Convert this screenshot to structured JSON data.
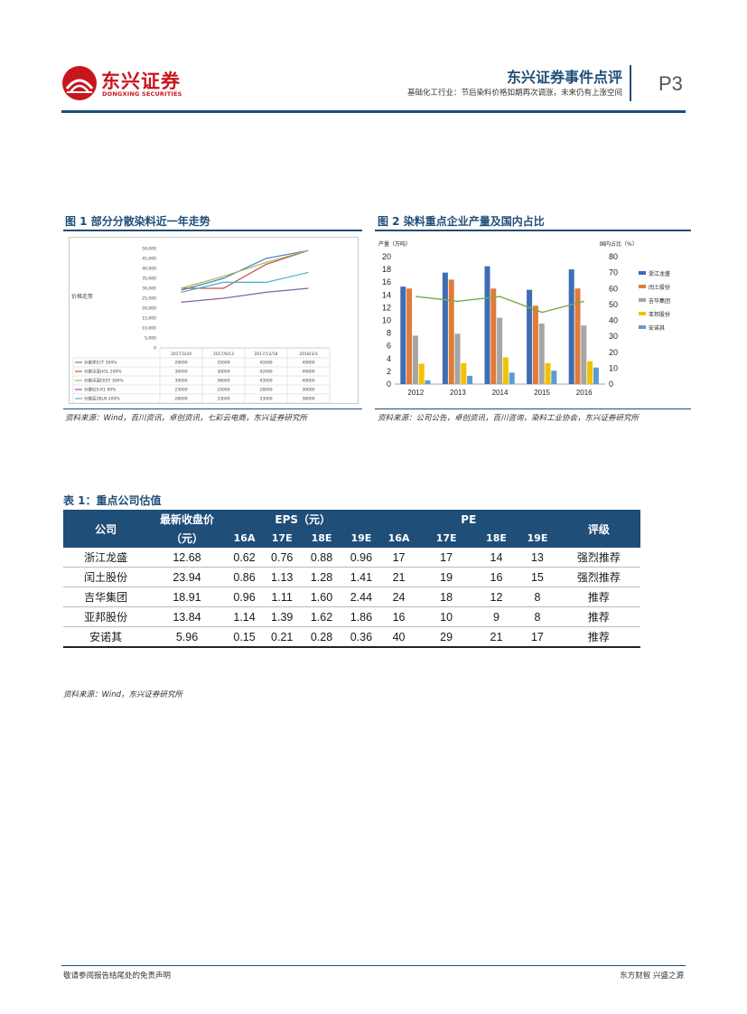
{
  "header": {
    "logo_cn": "东兴证券",
    "logo_en": "DONGXING SECURITIES",
    "title": "东兴证券事件点评",
    "subtitle": "基础化工行业：节后染料价格如期再次调涨，未来仍有上涨空间",
    "page": "P3"
  },
  "figure1": {
    "title": "图 1 部分分散染料近一年走势",
    "source": "资料来源：Wind，百川资讯，卓创资讯，七彩云电商，东兴证券研究所",
    "ylabel": "价格走势",
    "chart_data": {
      "type": "line",
      "x": [
        "2017/3/24",
        "2017/6/13",
        "2017/12/18",
        "2018/3/3"
      ],
      "ylim": [
        0,
        50000
      ],
      "yticks": [
        "50,000",
        "45,000",
        "40,000",
        "35,000",
        "30,000",
        "25,000",
        "20,000",
        "15,000",
        "10,000",
        "5,000",
        "0"
      ],
      "series": [
        {
          "name": "分散黑ECT 300%",
          "color": "#4f81bd",
          "values": [
            29000,
            35000,
            45000,
            49000
          ]
        },
        {
          "name": "分散深蓝HGL 200%",
          "color": "#c0504d",
          "values": [
            30000,
            30000,
            42000,
            49000
          ]
        },
        {
          "name": "分散深蓝EKST 300%",
          "color": "#9bbb59",
          "values": [
            30000,
            36000,
            43000,
            49000
          ]
        },
        {
          "name": "分散红S-R1 90%",
          "color": "#8064a2",
          "values": [
            23000,
            25000,
            28000,
            30000
          ]
        },
        {
          "name": "分散蓝2BLN 200%",
          "color": "#4bacc6",
          "values": [
            28000,
            33000,
            33000,
            38000
          ]
        }
      ]
    },
    "table_values": [
      [
        "29000",
        "35000",
        "45000",
        "49000"
      ],
      [
        "30000",
        "30000",
        "42000",
        "49000"
      ],
      [
        "30000",
        "36000",
        "43000",
        "49000"
      ],
      [
        "23000",
        "25000",
        "28000",
        "30000"
      ],
      [
        "28000",
        "33000",
        "33000",
        "38000"
      ]
    ]
  },
  "figure2": {
    "title": "图 2 染料重点企业产量及国内占比",
    "source": "资料来源：公司公告，卓创资讯，百川咨询，染料工业协会，东兴证券研究所",
    "chart_data": {
      "type": "bar",
      "categories": [
        "2012",
        "2013",
        "2014",
        "2015",
        "2016"
      ],
      "ylabel_left": "产量（万吨）",
      "ylabel_right": "国内占比（%）",
      "ylim": [
        0,
        20
      ],
      "ylim_right": [
        0,
        80
      ],
      "yticks": [
        "20",
        "18",
        "16",
        "14",
        "12",
        "10",
        "8",
        "6",
        "4",
        "2",
        "0"
      ],
      "yticks_right": [
        "80",
        "70",
        "60",
        "50",
        "40",
        "30",
        "20",
        "10",
        "0"
      ],
      "series": [
        {
          "name": "浙江龙盛",
          "color": "#3e6db5",
          "values": [
            15.3,
            17.5,
            18.5,
            14.8,
            18.0
          ]
        },
        {
          "name": "闰土股份",
          "color": "#e07b39",
          "values": [
            15.0,
            16.4,
            15.0,
            12.3,
            15.0
          ]
        },
        {
          "name": "吉华集团",
          "color": "#a5a5a5",
          "values": [
            7.6,
            7.9,
            10.4,
            9.5,
            9.2
          ]
        },
        {
          "name": "亚邦股份",
          "color": "#f2c200",
          "values": [
            3.2,
            3.3,
            4.2,
            3.3,
            3.6
          ]
        },
        {
          "name": "安诺其",
          "color": "#5b9bd5",
          "values": [
            0.6,
            1.3,
            1.8,
            2.1,
            2.6
          ]
        }
      ],
      "line": {
        "name": "国内占比",
        "color": "#70ad47",
        "values": [
          55,
          52,
          55,
          45,
          52
        ]
      }
    }
  },
  "table1": {
    "title": "表 1：重点公司估值",
    "headers": {
      "company": "公司",
      "price_line1": "最新收盘价",
      "price_line2": "（元）",
      "eps": "EPS（元）",
      "pe": "PE",
      "rating": "评级",
      "years": [
        "16A",
        "17E",
        "18E",
        "19E"
      ]
    },
    "rows": [
      {
        "company": "浙江龙盛",
        "price": "12.68",
        "eps": [
          "0.62",
          "0.76",
          "0.88",
          "0.96"
        ],
        "pe": [
          "17",
          "17",
          "14",
          "13"
        ],
        "rating": "强烈推荐"
      },
      {
        "company": "闰土股份",
        "price": "23.94",
        "eps": [
          "0.86",
          "1.13",
          "1.28",
          "1.41"
        ],
        "pe": [
          "21",
          "19",
          "16",
          "15"
        ],
        "rating": "强烈推荐"
      },
      {
        "company": "吉华集团",
        "price": "18.91",
        "eps": [
          "0.96",
          "1.11",
          "1.60",
          "2.44"
        ],
        "pe": [
          "24",
          "18",
          "12",
          "8"
        ],
        "rating": "推荐"
      },
      {
        "company": "亚邦股份",
        "price": "13.84",
        "eps": [
          "1.14",
          "1.39",
          "1.62",
          "1.86"
        ],
        "pe": [
          "16",
          "10",
          "9",
          "8"
        ],
        "rating": "推荐"
      },
      {
        "company": "安诺其",
        "price": "5.96",
        "eps": [
          "0.15",
          "0.21",
          "0.28",
          "0.36"
        ],
        "pe": [
          "40",
          "29",
          "21",
          "17"
        ],
        "rating": "推荐"
      }
    ],
    "source": "资料来源：Wind，东兴证券研究所"
  },
  "footer": {
    "left": "敬请参阅报告结尾处的免责声明",
    "right": "东方财智 兴盛之源"
  }
}
